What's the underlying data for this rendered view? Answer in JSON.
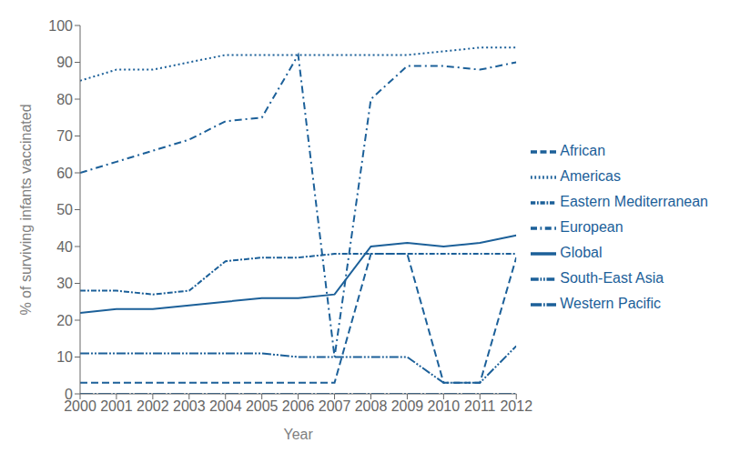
{
  "chart_data": {
    "type": "line",
    "xlabel": "Year",
    "ylabel": "% of surviving infants vaccinated",
    "x": [
      2000,
      2001,
      2002,
      2003,
      2004,
      2005,
      2006,
      2007,
      2008,
      2009,
      2010,
      2011,
      2012
    ],
    "series": [
      {
        "name": "Global",
        "values": [
          22,
          23,
          23,
          24,
          25,
          26,
          26,
          27,
          40,
          41,
          40,
          41,
          43
        ],
        "line_style": "solid"
      },
      {
        "name": "African",
        "values": [
          3,
          3,
          3,
          3,
          3,
          3,
          3,
          3,
          38,
          38,
          3,
          3,
          37
        ],
        "line_style": "dashed"
      },
      {
        "name": "Americas",
        "values": [
          85,
          88,
          88,
          90,
          92,
          92,
          92,
          92,
          92,
          92,
          93,
          94,
          94
        ],
        "line_style": "dotted"
      },
      {
        "name": "Eastern Mediterranean",
        "values": [
          28,
          28,
          27,
          28,
          36,
          37,
          37,
          38,
          38,
          38,
          38,
          38,
          38
        ],
        "line_style": "densely_dashdot"
      },
      {
        "name": "European",
        "values": [
          60,
          63,
          66,
          69,
          74,
          75,
          92,
          10,
          80,
          89,
          89,
          88,
          90
        ],
        "line_style": "dashdot"
      },
      {
        "name": "South-East Asia",
        "values": [
          11,
          11,
          11,
          11,
          11,
          11,
          10,
          10,
          10,
          10,
          3,
          3,
          13
        ],
        "line_style": "dashdotdot"
      },
      {
        "name": "Western Pacific",
        "values": [
          0,
          0,
          0,
          0,
          0,
          0,
          0,
          0,
          0,
          0,
          0,
          0,
          0
        ],
        "line_style": "long_dashdot"
      }
    ],
    "color": "#1C6099",
    "xlim": [
      2000,
      2012
    ],
    "xticks": [
      2000,
      2001,
      2002,
      2003,
      2004,
      2005,
      2006,
      2007,
      2008,
      2009,
      2010,
      2011,
      2012
    ],
    "ylim": [
      0,
      100
    ],
    "yticks": [
      0,
      10,
      20,
      30,
      40,
      50,
      60,
      70,
      80,
      90,
      100
    ],
    "grid": false,
    "legend": "right"
  }
}
